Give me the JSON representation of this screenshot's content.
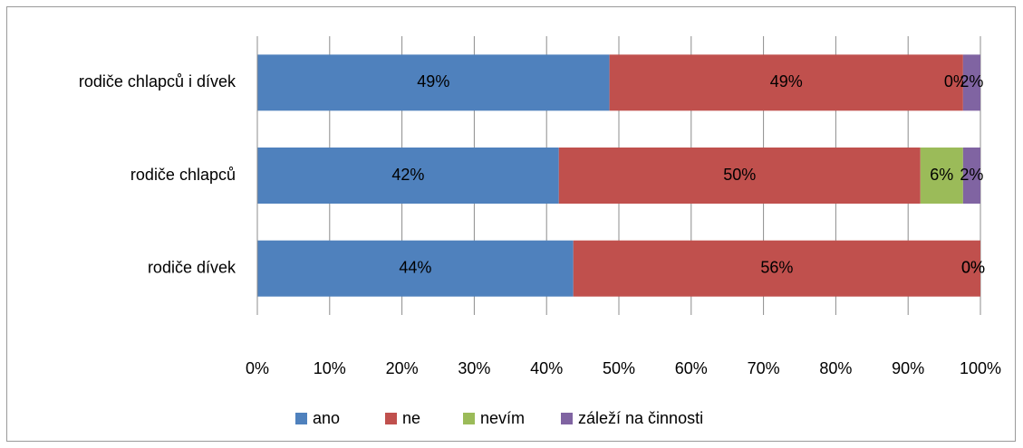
{
  "chart_data": {
    "type": "bar",
    "orientation": "horizontal",
    "stacked": true,
    "categories": [
      "rodiče chlapců i dívek",
      "rodiče chlapců",
      "rodiče dívek"
    ],
    "series": [
      {
        "name": "ano",
        "color": "#4f81bd",
        "values": [
          48.7,
          41.7,
          43.7
        ],
        "value_labels": [
          "49%",
          "42%",
          "44%"
        ]
      },
      {
        "name": "ne",
        "color": "#c0504d",
        "values": [
          48.9,
          50.0,
          56.3
        ],
        "value_labels": [
          "49%",
          "50%",
          "56%"
        ]
      },
      {
        "name": "nevím",
        "color": "#9bbb59",
        "values": [
          0,
          5.9,
          0
        ],
        "value_labels": [
          "0%",
          "6%",
          "0%"
        ]
      },
      {
        "name": "záleží na činnosti",
        "color": "#8064a2",
        "values": [
          2.4,
          2.4,
          0
        ],
        "value_labels": [
          "2%",
          "2%",
          "0%"
        ]
      }
    ],
    "xlim": [
      0,
      100
    ],
    "xticks": [
      {
        "value": 0,
        "label": "0%"
      },
      {
        "value": 10,
        "label": "10%"
      },
      {
        "value": 20,
        "label": "20%"
      },
      {
        "value": 30,
        "label": "30%"
      },
      {
        "value": 40,
        "label": "40%"
      },
      {
        "value": 50,
        "label": "50%"
      },
      {
        "value": 60,
        "label": "60%"
      },
      {
        "value": 70,
        "label": "70%"
      },
      {
        "value": 80,
        "label": "80%"
      },
      {
        "value": 90,
        "label": "90%"
      },
      {
        "value": 100,
        "label": "100%"
      }
    ],
    "grid": true,
    "legend": "bottom"
  }
}
